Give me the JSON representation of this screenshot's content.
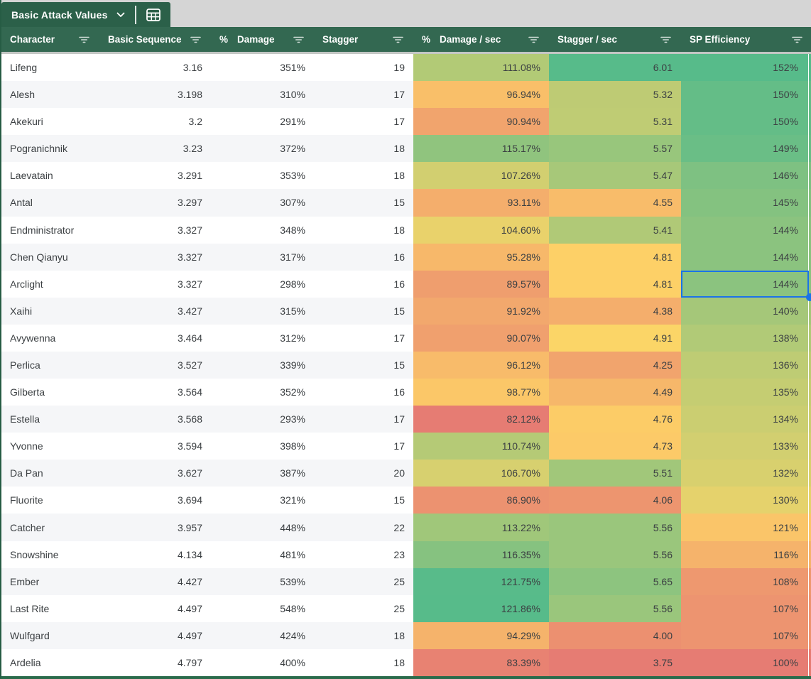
{
  "tab": {
    "title": "Basic Attack Values",
    "chevron_icon": "chevron-down-icon",
    "table_icon": "table-grid-icon"
  },
  "colors": {
    "tab_green": "#2b6049",
    "header_green": "#336851",
    "topbar_gray": "#d5d5d5",
    "band_gray": "#f5f6f8",
    "selection_blue": "#1a73e8",
    "table_border_green": "#2a6b4b",
    "text_dark": "#3c4043"
  },
  "conditional_format": {
    "min_color": "#e67c73",
    "mid_color": "#ffd666",
    "max_color": "#57bb8a"
  },
  "columns": [
    {
      "id": "character",
      "prefix": "",
      "label": "Character"
    },
    {
      "id": "basic_sequence",
      "prefix": "",
      "label": "Basic Sequence"
    },
    {
      "id": "damage",
      "prefix": "%",
      "label": "Damage"
    },
    {
      "id": "stagger",
      "prefix": "",
      "label": "Stagger"
    },
    {
      "id": "damage_per_sec",
      "prefix": "%",
      "label": "Damage / sec"
    },
    {
      "id": "stagger_per_sec",
      "prefix": "",
      "label": "Stagger / sec"
    },
    {
      "id": "sp_efficiency",
      "prefix": "",
      "label": "SP Efficiency"
    }
  ],
  "rows": [
    {
      "character": "Lifeng",
      "basic_sequence": "3.16",
      "damage": "351%",
      "stagger": "19",
      "damage_per_sec": "111.08%",
      "stagger_per_sec": "6.01",
      "sp_efficiency": "152%"
    },
    {
      "character": "Alesh",
      "basic_sequence": "3.198",
      "damage": "310%",
      "stagger": "17",
      "damage_per_sec": "96.94%",
      "stagger_per_sec": "5.32",
      "sp_efficiency": "150%"
    },
    {
      "character": "Akekuri",
      "basic_sequence": "3.2",
      "damage": "291%",
      "stagger": "17",
      "damage_per_sec": "90.94%",
      "stagger_per_sec": "5.31",
      "sp_efficiency": "150%"
    },
    {
      "character": "Pogranichnik",
      "basic_sequence": "3.23",
      "damage": "372%",
      "stagger": "18",
      "damage_per_sec": "115.17%",
      "stagger_per_sec": "5.57",
      "sp_efficiency": "149%"
    },
    {
      "character": "Laevatain",
      "basic_sequence": "3.291",
      "damage": "353%",
      "stagger": "18",
      "damage_per_sec": "107.26%",
      "stagger_per_sec": "5.47",
      "sp_efficiency": "146%"
    },
    {
      "character": "Antal",
      "basic_sequence": "3.297",
      "damage": "307%",
      "stagger": "15",
      "damage_per_sec": "93.11%",
      "stagger_per_sec": "4.55",
      "sp_efficiency": "145%"
    },
    {
      "character": "Endministrator",
      "basic_sequence": "3.327",
      "damage": "348%",
      "stagger": "18",
      "damage_per_sec": "104.60%",
      "stagger_per_sec": "5.41",
      "sp_efficiency": "144%"
    },
    {
      "character": "Chen Qianyu",
      "basic_sequence": "3.327",
      "damage": "317%",
      "stagger": "16",
      "damage_per_sec": "95.28%",
      "stagger_per_sec": "4.81",
      "sp_efficiency": "144%"
    },
    {
      "character": "Arclight",
      "basic_sequence": "3.327",
      "damage": "298%",
      "stagger": "16",
      "damage_per_sec": "89.57%",
      "stagger_per_sec": "4.81",
      "sp_efficiency": "144%"
    },
    {
      "character": "Xaihi",
      "basic_sequence": "3.427",
      "damage": "315%",
      "stagger": "15",
      "damage_per_sec": "91.92%",
      "stagger_per_sec": "4.38",
      "sp_efficiency": "140%"
    },
    {
      "character": "Avywenna",
      "basic_sequence": "3.464",
      "damage": "312%",
      "stagger": "17",
      "damage_per_sec": "90.07%",
      "stagger_per_sec": "4.91",
      "sp_efficiency": "138%"
    },
    {
      "character": "Perlica",
      "basic_sequence": "3.527",
      "damage": "339%",
      "stagger": "15",
      "damage_per_sec": "96.12%",
      "stagger_per_sec": "4.25",
      "sp_efficiency": "136%"
    },
    {
      "character": "Gilberta",
      "basic_sequence": "3.564",
      "damage": "352%",
      "stagger": "16",
      "damage_per_sec": "98.77%",
      "stagger_per_sec": "4.49",
      "sp_efficiency": "135%"
    },
    {
      "character": "Estella",
      "basic_sequence": "3.568",
      "damage": "293%",
      "stagger": "17",
      "damage_per_sec": "82.12%",
      "stagger_per_sec": "4.76",
      "sp_efficiency": "134%"
    },
    {
      "character": "Yvonne",
      "basic_sequence": "3.594",
      "damage": "398%",
      "stagger": "17",
      "damage_per_sec": "110.74%",
      "stagger_per_sec": "4.73",
      "sp_efficiency": "133%"
    },
    {
      "character": "Da Pan",
      "basic_sequence": "3.627",
      "damage": "387%",
      "stagger": "20",
      "damage_per_sec": "106.70%",
      "stagger_per_sec": "5.51",
      "sp_efficiency": "132%"
    },
    {
      "character": "Fluorite",
      "basic_sequence": "3.694",
      "damage": "321%",
      "stagger": "15",
      "damage_per_sec": "86.90%",
      "stagger_per_sec": "4.06",
      "sp_efficiency": "130%"
    },
    {
      "character": "Catcher",
      "basic_sequence": "3.957",
      "damage": "448%",
      "stagger": "22",
      "damage_per_sec": "113.22%",
      "stagger_per_sec": "5.56",
      "sp_efficiency": "121%"
    },
    {
      "character": "Snowshine",
      "basic_sequence": "4.134",
      "damage": "481%",
      "stagger": "23",
      "damage_per_sec": "116.35%",
      "stagger_per_sec": "5.56",
      "sp_efficiency": "116%"
    },
    {
      "character": "Ember",
      "basic_sequence": "4.427",
      "damage": "539%",
      "stagger": "25",
      "damage_per_sec": "121.75%",
      "stagger_per_sec": "5.65",
      "sp_efficiency": "108%"
    },
    {
      "character": "Last Rite",
      "basic_sequence": "4.497",
      "damage": "548%",
      "stagger": "25",
      "damage_per_sec": "121.86%",
      "stagger_per_sec": "5.56",
      "sp_efficiency": "107%"
    },
    {
      "character": "Wulfgard",
      "basic_sequence": "4.497",
      "damage": "424%",
      "stagger": "18",
      "damage_per_sec": "94.29%",
      "stagger_per_sec": "4.00",
      "sp_efficiency": "107%"
    },
    {
      "character": "Ardelia",
      "basic_sequence": "4.797",
      "damage": "400%",
      "stagger": "18",
      "damage_per_sec": "83.39%",
      "stagger_per_sec": "3.75",
      "sp_efficiency": "100%"
    }
  ],
  "selection": {
    "row_character": "Arclight",
    "column": "sp_efficiency"
  }
}
